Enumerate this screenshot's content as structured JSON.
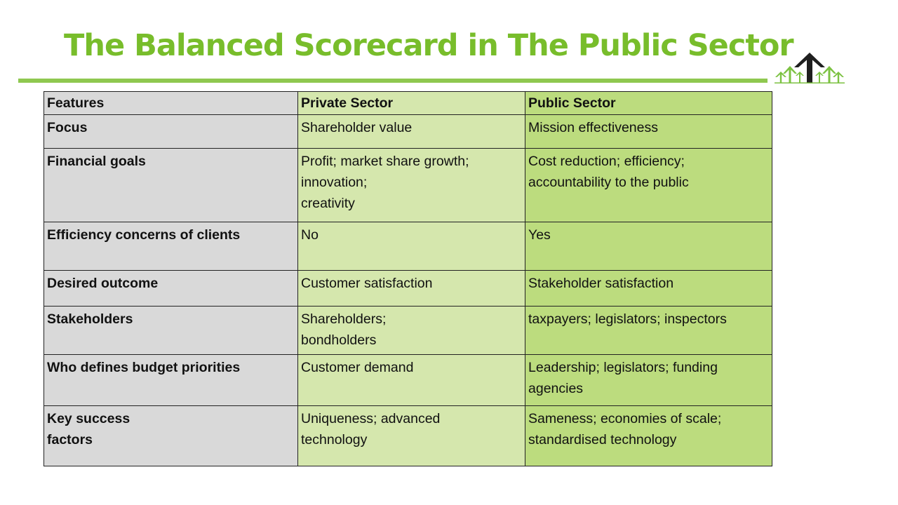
{
  "title": "The Balanced Scorecard in The Public Sector",
  "logo": {
    "icon": "arrows-up-logo-icon",
    "colors": {
      "dark": "#1f1f1f",
      "green": "#7cc242"
    }
  },
  "colors": {
    "title": "#78bd2b",
    "rule": "#8fc850",
    "features_col": "#d9d9d9",
    "private_col": "#d5e7ad",
    "public_col": "#bcdc7e"
  },
  "table": {
    "headers": [
      "Features",
      "Private Sector",
      "Public Sector"
    ],
    "rows": [
      {
        "feature": [
          "Focus"
        ],
        "private": [
          "Shareholder value"
        ],
        "public": [
          "Mission effectiveness"
        ]
      },
      {
        "feature": [
          "Financial goals"
        ],
        "private": [
          "Profit; market share growth;",
          "innovation;",
          "creativity"
        ],
        "public": [
          "Cost reduction; efficiency;",
          "accountability to the public"
        ]
      },
      {
        "feature": [
          "Efficiency concerns of clients"
        ],
        "private": [
          "No"
        ],
        "public": [
          "Yes"
        ]
      },
      {
        "feature": [
          "Desired outcome"
        ],
        "private": [
          "Customer satisfaction"
        ],
        "public": [
          "Stakeholder satisfaction"
        ]
      },
      {
        "feature": [
          "Stakeholders"
        ],
        "private": [
          "Shareholders;",
          "bondholders"
        ],
        "public": [
          "taxpayers; legislators; inspectors"
        ]
      },
      {
        "feature": [
          "Who defines budget priorities"
        ],
        "private": [
          "Customer demand"
        ],
        "public": [
          "Leadership; legislators; funding agencies"
        ]
      },
      {
        "feature": [
          "Key success",
          "factors"
        ],
        "private": [
          "Uniqueness; advanced",
          "technology"
        ],
        "public": [
          "Sameness; economies of scale;",
          "standardised technology"
        ]
      }
    ]
  }
}
